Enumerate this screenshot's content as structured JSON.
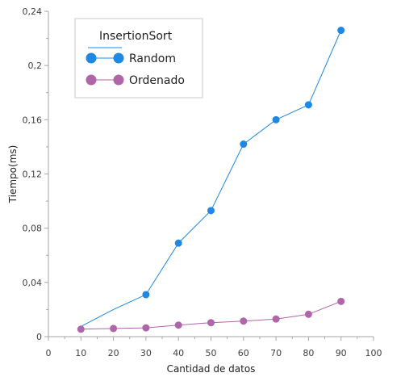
{
  "chart_data": {
    "type": "line",
    "title": "",
    "xlabel": "Cantidad de datos",
    "ylabel": "Tiempo(ms)",
    "xlim": [
      0,
      100
    ],
    "ylim": [
      0,
      0.24
    ],
    "x_ticks": [
      {
        "value": 0,
        "label": "0"
      },
      {
        "value": 10,
        "label": "10"
      },
      {
        "value": 20,
        "label": "20"
      },
      {
        "value": 30,
        "label": "30"
      },
      {
        "value": 40,
        "label": "40"
      },
      {
        "value": 50,
        "label": "50"
      },
      {
        "value": 60,
        "label": "60"
      },
      {
        "value": 70,
        "label": "70"
      },
      {
        "value": 80,
        "label": "80"
      },
      {
        "value": 90,
        "label": "90"
      },
      {
        "value": 100,
        "label": "100"
      }
    ],
    "y_ticks": [
      {
        "value": 0,
        "label": "0"
      },
      {
        "value": 0.04,
        "label": "0,04"
      },
      {
        "value": 0.08,
        "label": "0,08"
      },
      {
        "value": 0.12,
        "label": "0,12"
      },
      {
        "value": 0.16,
        "label": "0,16"
      },
      {
        "value": 0.2,
        "label": "0,2"
      },
      {
        "value": 0.24,
        "label": "0,24"
      }
    ],
    "grid": false,
    "legend_position": "top-left",
    "legend_title": "InsertionSort",
    "series": [
      {
        "name": "Random",
        "color": "#1e88e5",
        "x": [
          10,
          20,
          30,
          40,
          50,
          60,
          70,
          80,
          90
        ],
        "values": [
          0.0075,
          0.02,
          0.031,
          0.069,
          0.093,
          0.142,
          0.16,
          0.171,
          0.226
        ],
        "markers": [
          false,
          false,
          true,
          true,
          true,
          true,
          true,
          true,
          true
        ]
      },
      {
        "name": "Ordenado",
        "color": "#b065a8",
        "x": [
          10,
          20,
          30,
          40,
          50,
          60,
          70,
          80,
          90
        ],
        "values": [
          0.0055,
          0.006,
          0.0065,
          0.0085,
          0.0103,
          0.0115,
          0.013,
          0.0165,
          0.026
        ],
        "markers": [
          true,
          true,
          true,
          true,
          true,
          true,
          true,
          true,
          true
        ]
      }
    ]
  }
}
